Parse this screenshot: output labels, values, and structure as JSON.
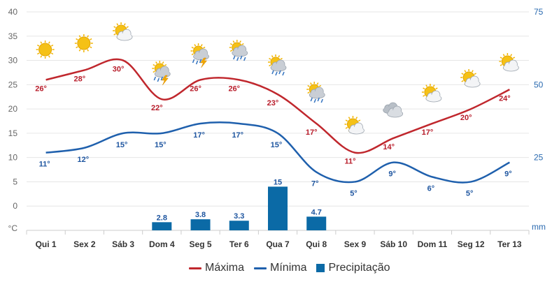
{
  "chart_data": {
    "type": "line",
    "categories": [
      "Qui 1",
      "Sex 2",
      "Sáb 3",
      "Dom 4",
      "Seg 5",
      "Ter 6",
      "Qua 7",
      "Qui 8",
      "Sex 9",
      "Sáb 10",
      "Dom 11",
      "Seg 12",
      "Ter 13"
    ],
    "series": [
      {
        "name": "Máxima",
        "type": "line",
        "color": "#c0272d",
        "values": [
          26,
          28,
          30,
          22,
          26,
          26,
          23,
          17,
          11,
          14,
          17,
          20,
          24
        ],
        "labels": [
          "26°",
          "28°",
          "30°",
          "22°",
          "26°",
          "26°",
          "23°",
          "17°",
          "11°",
          "14°",
          "17°",
          "20°",
          "24°"
        ]
      },
      {
        "name": "Mínima",
        "type": "line",
        "color": "#1f60ad",
        "values": [
          11,
          12,
          15,
          15,
          17,
          17,
          15,
          7,
          5,
          9,
          6,
          5,
          9
        ],
        "labels": [
          "11°",
          "12°",
          "15°",
          "15°",
          "17°",
          "17°",
          "15°",
          "7°",
          "5°",
          "9°",
          "6°",
          "5°",
          "9°"
        ]
      },
      {
        "name": "Precipitação",
        "type": "bar",
        "color": "#0b6aa6",
        "values": [
          null,
          null,
          null,
          2.8,
          3.8,
          3.3,
          15,
          4.7,
          null,
          null,
          null,
          null,
          null
        ],
        "labels": [
          "",
          "",
          "",
          "2.8",
          "3.8",
          "3.3",
          "15",
          "4.7",
          "",
          "",
          "",
          "",
          ""
        ]
      }
    ],
    "y_left": {
      "ticks": [
        "40",
        "35",
        "30",
        "25",
        "20",
        "15",
        "10",
        "5",
        "0"
      ],
      "unit": "°C",
      "range": [
        -5,
        40
      ]
    },
    "y_right": {
      "ticks": [
        "75",
        "50",
        "25"
      ],
      "unit": "mm",
      "range": [
        0,
        75
      ]
    },
    "weather_icons": [
      "sun-icon",
      "sun-icon",
      "partly-cloudy-icon",
      "thunderstorm-icon",
      "thunderstorm-icon",
      "rain-icon",
      "rain-icon",
      "rain-icon",
      "partly-cloudy-icon",
      "cloudy-icon",
      "partly-cloudy-icon",
      "partly-cloudy-icon",
      "partly-cloudy-icon"
    ],
    "grid": true,
    "legend_position": "bottom-center"
  },
  "legend": {
    "max_label": "Máxima",
    "min_label": "Mínima",
    "precip_label": "Precipitação",
    "max_color": "#c0272d",
    "min_color": "#1f60ad",
    "precip_color": "#0b6aa6"
  }
}
